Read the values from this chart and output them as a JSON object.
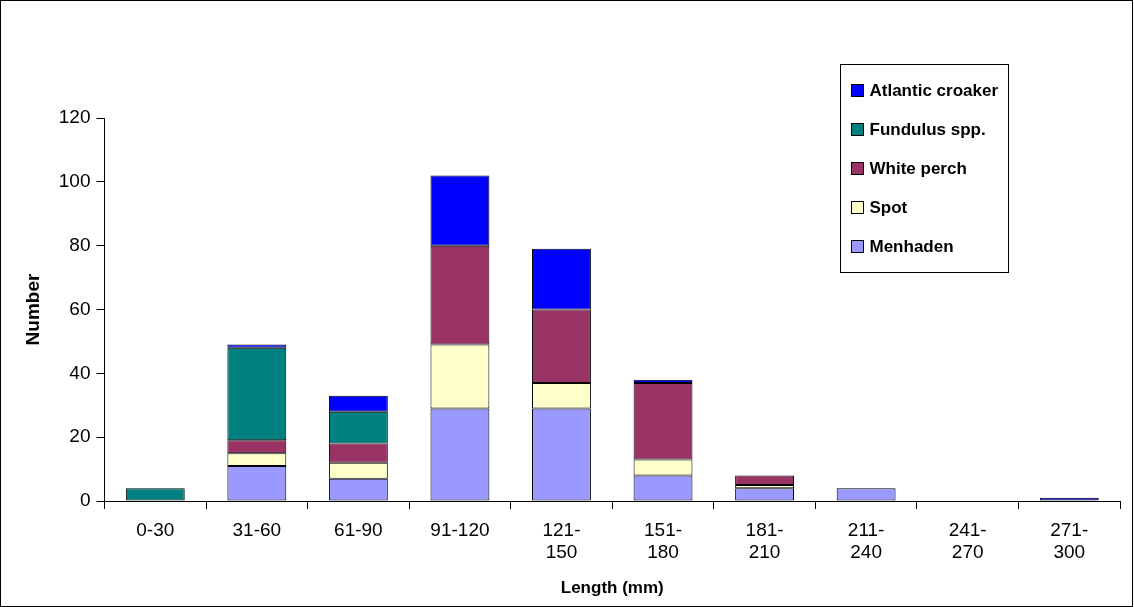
{
  "chart_data": {
    "type": "bar",
    "stacked": true,
    "xlabel": "Length (mm)",
    "ylabel": "Number",
    "categories": [
      "0-30",
      "31-60",
      "61-90",
      "91-120",
      "121-150",
      "151-180",
      "181-210",
      "211-240",
      "241-270",
      "271-300"
    ],
    "series": [
      {
        "name": "Menhaden",
        "color": "#9999ff",
        "values": [
          0,
          11,
          7,
          29,
          29,
          8,
          4,
          4,
          0,
          0
        ]
      },
      {
        "name": "Spot",
        "color": "#ffffcc",
        "values": [
          0,
          4,
          5,
          20,
          8,
          5,
          1,
          0,
          0,
          0
        ]
      },
      {
        "name": "White perch",
        "color": "#993366",
        "values": [
          0,
          4,
          6,
          31,
          23,
          24,
          3,
          0,
          0,
          0
        ]
      },
      {
        "name": "Fundulus spp.",
        "color": "#008080",
        "values": [
          4,
          29,
          10,
          0,
          0,
          0,
          0,
          0,
          0,
          0
        ]
      },
      {
        "name": "Atlantic croaker",
        "color": "#0000ff",
        "values": [
          0,
          1,
          5,
          22,
          19,
          1,
          0,
          0,
          0,
          1
        ]
      }
    ],
    "ylim": [
      0,
      120
    ],
    "yticks": [
      0,
      20,
      40,
      60,
      80,
      100,
      120
    ],
    "legend": "top right"
  }
}
